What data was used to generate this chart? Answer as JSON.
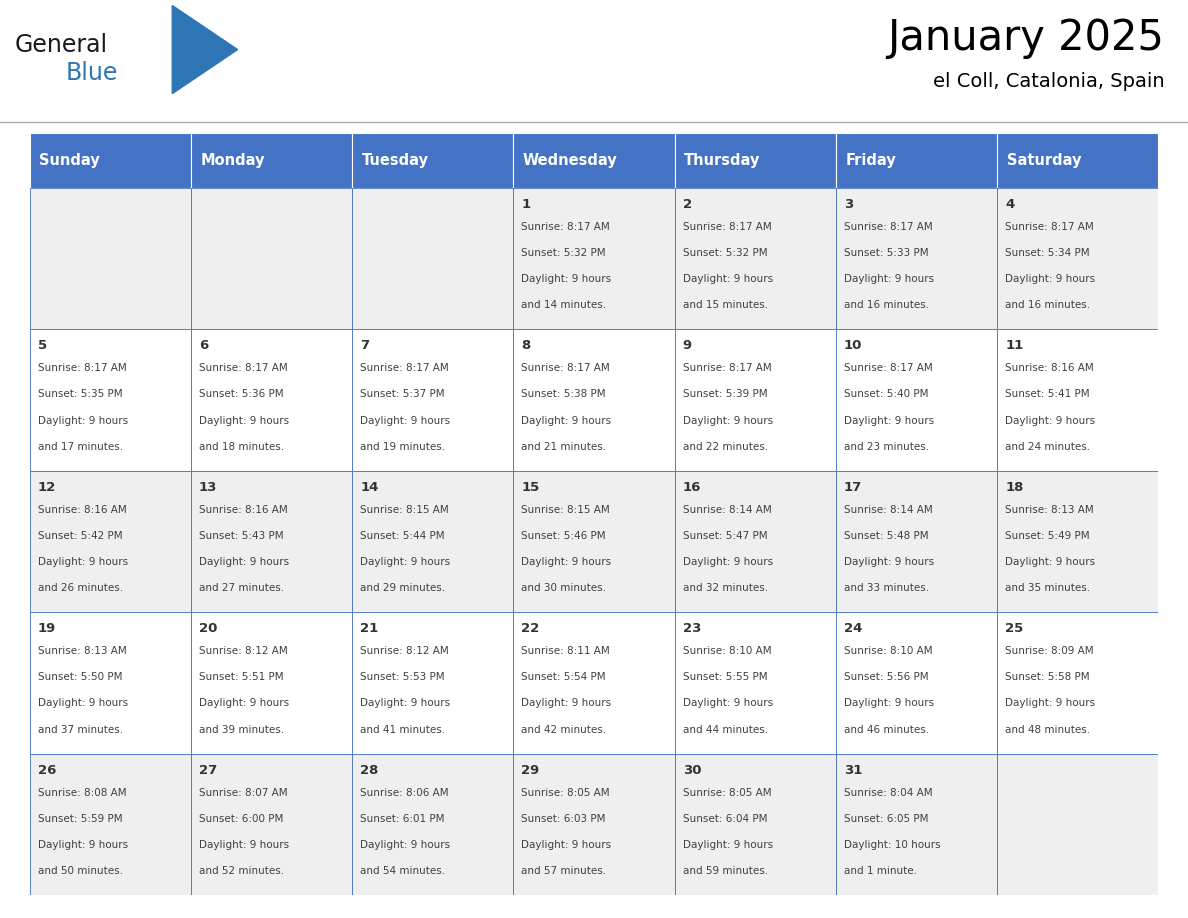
{
  "title": "January 2025",
  "subtitle": "el Coll, Catalonia, Spain",
  "days_of_week": [
    "Sunday",
    "Monday",
    "Tuesday",
    "Wednesday",
    "Thursday",
    "Friday",
    "Saturday"
  ],
  "header_bg": "#4472C4",
  "header_text": "#FFFFFF",
  "cell_bg_odd": "#EFEFEF",
  "cell_bg_even": "#FFFFFF",
  "cell_border": "#4472C4",
  "text_color": "#404040",
  "day_number_color": "#333333",
  "logo_general_color": "#1a1a1a",
  "logo_blue_color": "#2E75B6",
  "weeks": [
    {
      "days": [
        {
          "date": null,
          "sunrise": null,
          "sunset": null,
          "daylight": null
        },
        {
          "date": null,
          "sunrise": null,
          "sunset": null,
          "daylight": null
        },
        {
          "date": null,
          "sunrise": null,
          "sunset": null,
          "daylight": null
        },
        {
          "date": 1,
          "sunrise": "8:17 AM",
          "sunset": "5:32 PM",
          "daylight": "9 hours and 14 minutes."
        },
        {
          "date": 2,
          "sunrise": "8:17 AM",
          "sunset": "5:32 PM",
          "daylight": "9 hours and 15 minutes."
        },
        {
          "date": 3,
          "sunrise": "8:17 AM",
          "sunset": "5:33 PM",
          "daylight": "9 hours and 16 minutes."
        },
        {
          "date": 4,
          "sunrise": "8:17 AM",
          "sunset": "5:34 PM",
          "daylight": "9 hours and 16 minutes."
        }
      ],
      "bg": "#EFEFEF"
    },
    {
      "days": [
        {
          "date": 5,
          "sunrise": "8:17 AM",
          "sunset": "5:35 PM",
          "daylight": "9 hours and 17 minutes."
        },
        {
          "date": 6,
          "sunrise": "8:17 AM",
          "sunset": "5:36 PM",
          "daylight": "9 hours and 18 minutes."
        },
        {
          "date": 7,
          "sunrise": "8:17 AM",
          "sunset": "5:37 PM",
          "daylight": "9 hours and 19 minutes."
        },
        {
          "date": 8,
          "sunrise": "8:17 AM",
          "sunset": "5:38 PM",
          "daylight": "9 hours and 21 minutes."
        },
        {
          "date": 9,
          "sunrise": "8:17 AM",
          "sunset": "5:39 PM",
          "daylight": "9 hours and 22 minutes."
        },
        {
          "date": 10,
          "sunrise": "8:17 AM",
          "sunset": "5:40 PM",
          "daylight": "9 hours and 23 minutes."
        },
        {
          "date": 11,
          "sunrise": "8:16 AM",
          "sunset": "5:41 PM",
          "daylight": "9 hours and 24 minutes."
        }
      ],
      "bg": "#FFFFFF"
    },
    {
      "days": [
        {
          "date": 12,
          "sunrise": "8:16 AM",
          "sunset": "5:42 PM",
          "daylight": "9 hours and 26 minutes."
        },
        {
          "date": 13,
          "sunrise": "8:16 AM",
          "sunset": "5:43 PM",
          "daylight": "9 hours and 27 minutes."
        },
        {
          "date": 14,
          "sunrise": "8:15 AM",
          "sunset": "5:44 PM",
          "daylight": "9 hours and 29 minutes."
        },
        {
          "date": 15,
          "sunrise": "8:15 AM",
          "sunset": "5:46 PM",
          "daylight": "9 hours and 30 minutes."
        },
        {
          "date": 16,
          "sunrise": "8:14 AM",
          "sunset": "5:47 PM",
          "daylight": "9 hours and 32 minutes."
        },
        {
          "date": 17,
          "sunrise": "8:14 AM",
          "sunset": "5:48 PM",
          "daylight": "9 hours and 33 minutes."
        },
        {
          "date": 18,
          "sunrise": "8:13 AM",
          "sunset": "5:49 PM",
          "daylight": "9 hours and 35 minutes."
        }
      ],
      "bg": "#EFEFEF"
    },
    {
      "days": [
        {
          "date": 19,
          "sunrise": "8:13 AM",
          "sunset": "5:50 PM",
          "daylight": "9 hours and 37 minutes."
        },
        {
          "date": 20,
          "sunrise": "8:12 AM",
          "sunset": "5:51 PM",
          "daylight": "9 hours and 39 minutes."
        },
        {
          "date": 21,
          "sunrise": "8:12 AM",
          "sunset": "5:53 PM",
          "daylight": "9 hours and 41 minutes."
        },
        {
          "date": 22,
          "sunrise": "8:11 AM",
          "sunset": "5:54 PM",
          "daylight": "9 hours and 42 minutes."
        },
        {
          "date": 23,
          "sunrise": "8:10 AM",
          "sunset": "5:55 PM",
          "daylight": "9 hours and 44 minutes."
        },
        {
          "date": 24,
          "sunrise": "8:10 AM",
          "sunset": "5:56 PM",
          "daylight": "9 hours and 46 minutes."
        },
        {
          "date": 25,
          "sunrise": "8:09 AM",
          "sunset": "5:58 PM",
          "daylight": "9 hours and 48 minutes."
        }
      ],
      "bg": "#FFFFFF"
    },
    {
      "days": [
        {
          "date": 26,
          "sunrise": "8:08 AM",
          "sunset": "5:59 PM",
          "daylight": "9 hours and 50 minutes."
        },
        {
          "date": 27,
          "sunrise": "8:07 AM",
          "sunset": "6:00 PM",
          "daylight": "9 hours and 52 minutes."
        },
        {
          "date": 28,
          "sunrise": "8:06 AM",
          "sunset": "6:01 PM",
          "daylight": "9 hours and 54 minutes."
        },
        {
          "date": 29,
          "sunrise": "8:05 AM",
          "sunset": "6:03 PM",
          "daylight": "9 hours and 57 minutes."
        },
        {
          "date": 30,
          "sunrise": "8:05 AM",
          "sunset": "6:04 PM",
          "daylight": "9 hours and 59 minutes."
        },
        {
          "date": 31,
          "sunrise": "8:04 AM",
          "sunset": "6:05 PM",
          "daylight": "10 hours and 1 minute."
        },
        {
          "date": null,
          "sunrise": null,
          "sunset": null,
          "daylight": null
        }
      ],
      "bg": "#EFEFEF"
    }
  ]
}
